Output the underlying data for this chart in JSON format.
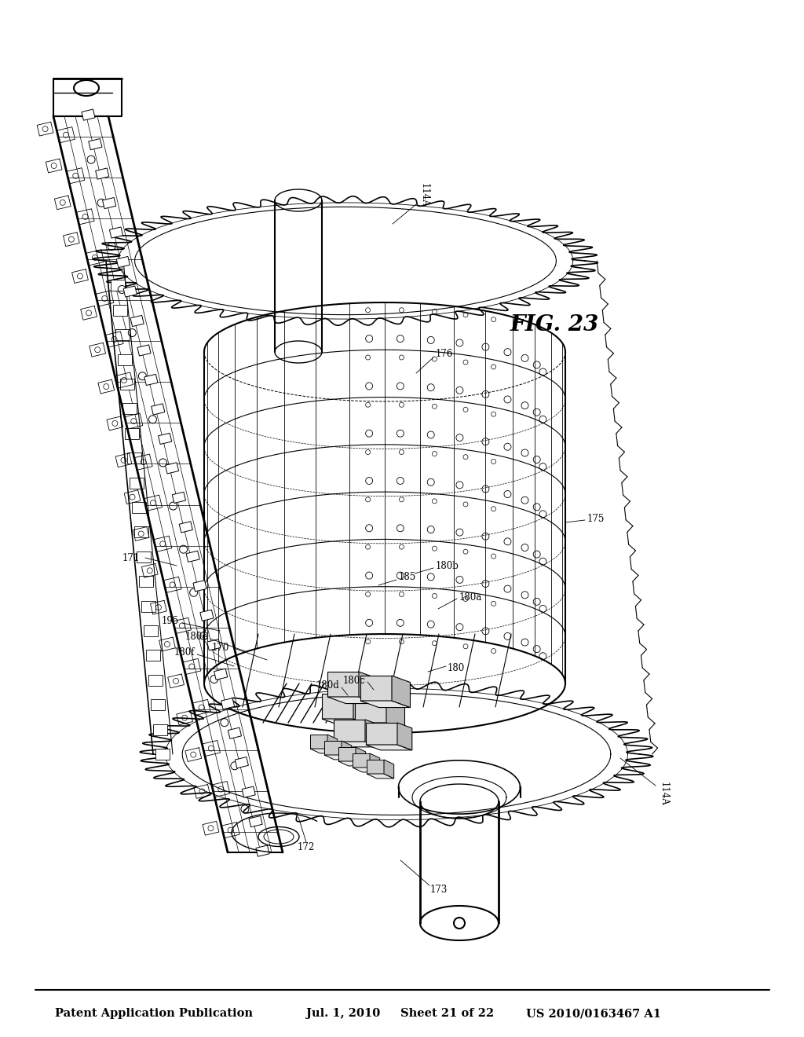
{
  "title_left": "Patent Application Publication",
  "title_mid": "Jul. 1, 2010   Sheet 21 of 22",
  "title_right": "US 2010/0163467 A1",
  "fig_label": "FIG. 23",
  "background_color": "#ffffff",
  "text_color": "#000000",
  "header_fontsize": 10.5,
  "fig_label_fontsize": 20,
  "label_fontsize": 8.5
}
